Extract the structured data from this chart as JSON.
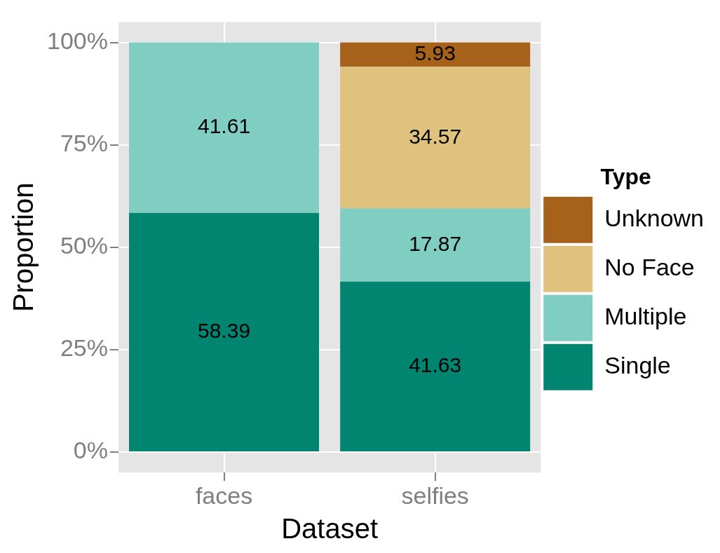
{
  "chart_data": {
    "type": "bar",
    "stacked": true,
    "xlabel": "Dataset",
    "ylabel": "Proportion",
    "legend_title": "Type",
    "categories": [
      "faces",
      "selfies"
    ],
    "series": [
      {
        "name": "Single",
        "color": "#018571",
        "values": [
          58.39,
          41.63
        ]
      },
      {
        "name": "Multiple",
        "color": "#80cdc1",
        "values": [
          41.61,
          17.87
        ]
      },
      {
        "name": "No Face",
        "color": "#dfc27d",
        "values": [
          null,
          34.57
        ]
      },
      {
        "name": "Unknown",
        "color": "#a6611a",
        "values": [
          null,
          5.93
        ]
      }
    ],
    "ylim": [
      -5,
      105
    ],
    "yticks": [
      {
        "value": 0,
        "label": "0%"
      },
      {
        "value": 25,
        "label": "25%"
      },
      {
        "value": 50,
        "label": "50%"
      },
      {
        "value": 75,
        "label": "75%"
      },
      {
        "value": 100,
        "label": "100%"
      }
    ],
    "grid": true,
    "legend": "right",
    "data_labels": true
  }
}
